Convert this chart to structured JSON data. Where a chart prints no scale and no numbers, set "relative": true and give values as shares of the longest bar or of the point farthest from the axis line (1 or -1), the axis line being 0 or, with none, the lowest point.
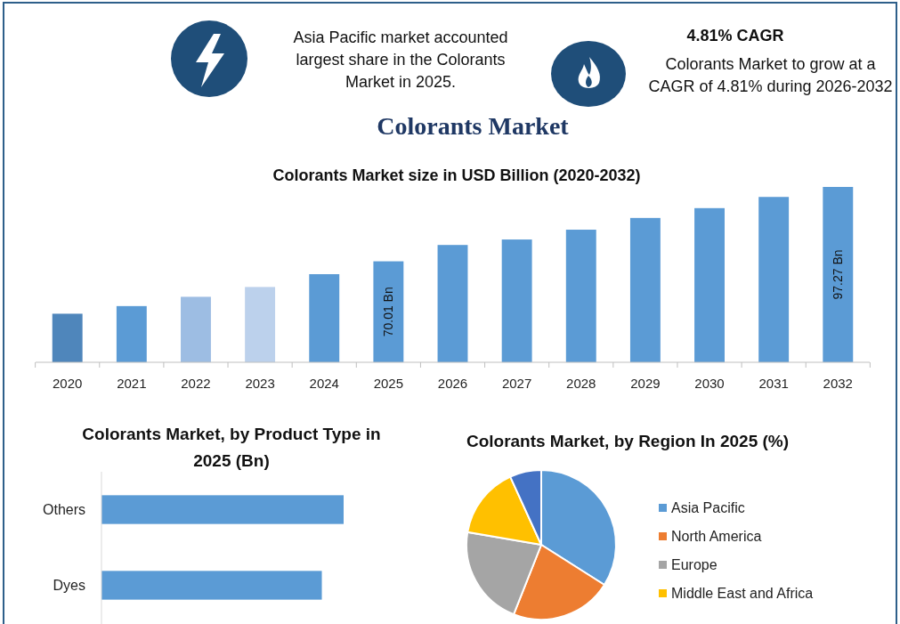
{
  "chart_data": [
    {
      "type": "other",
      "title": "Colorants Market",
      "annotations": [
        "Asia Pacific market accounted largest share in the Colorants Market in 2025.",
        "4.81% CAGR",
        "Colorants Market to grow at a CAGR of 4.81% during 2026-2032"
      ]
    },
    {
      "type": "bar",
      "title": "Colorants Market size in USD Billion (2020-2032)",
      "categories": [
        "2020",
        "2021",
        "2022",
        "2023",
        "2024",
        "2025",
        "2026",
        "2027",
        "2028",
        "2029",
        "2030",
        "2031",
        "2032"
      ],
      "values": [
        50.8,
        53.6,
        57.0,
        60.6,
        65.3,
        70.01,
        76.0,
        78.0,
        81.6,
        85.9,
        89.5,
        93.6,
        97.27
      ],
      "colors": [
        "#4f86bb",
        "#5b9bd5",
        "#9dbde3",
        "#bcd1ec",
        "#5b9bd5",
        "#5b9bd5",
        "#5b9bd5",
        "#5b9bd5",
        "#5b9bd5",
        "#5b9bd5",
        "#5b9bd5",
        "#5b9bd5",
        "#5b9bd5"
      ],
      "value_labels": [
        null,
        null,
        null,
        null,
        null,
        "70.01 Bn",
        null,
        null,
        null,
        null,
        null,
        null,
        "97.27 Bn"
      ],
      "ylim": [
        33,
        97.27
      ],
      "tick_labels": "x"
    },
    {
      "type": "bar",
      "orientation": "horizontal",
      "title": "Colorants Market, by Product Type in 2025 (Bn)",
      "categories": [
        "Others",
        "Dyes"
      ],
      "values": [
        1,
        0.91
      ],
      "color": "#5b9bd5",
      "relative": true
    },
    {
      "type": "pie",
      "title": "Colorants Market, by Region In 2025 (%)",
      "categories": [
        "Asia Pacific",
        "North America",
        "Europe",
        "Middle East and Africa",
        null
      ],
      "values": [
        34,
        22,
        21.7,
        15.5,
        6.8
      ],
      "colors": [
        "#5b9bd5",
        "#ed7d31",
        "#a5a5a5",
        "#ffc000",
        "#4472c4"
      ],
      "legend": "right"
    }
  ]
}
